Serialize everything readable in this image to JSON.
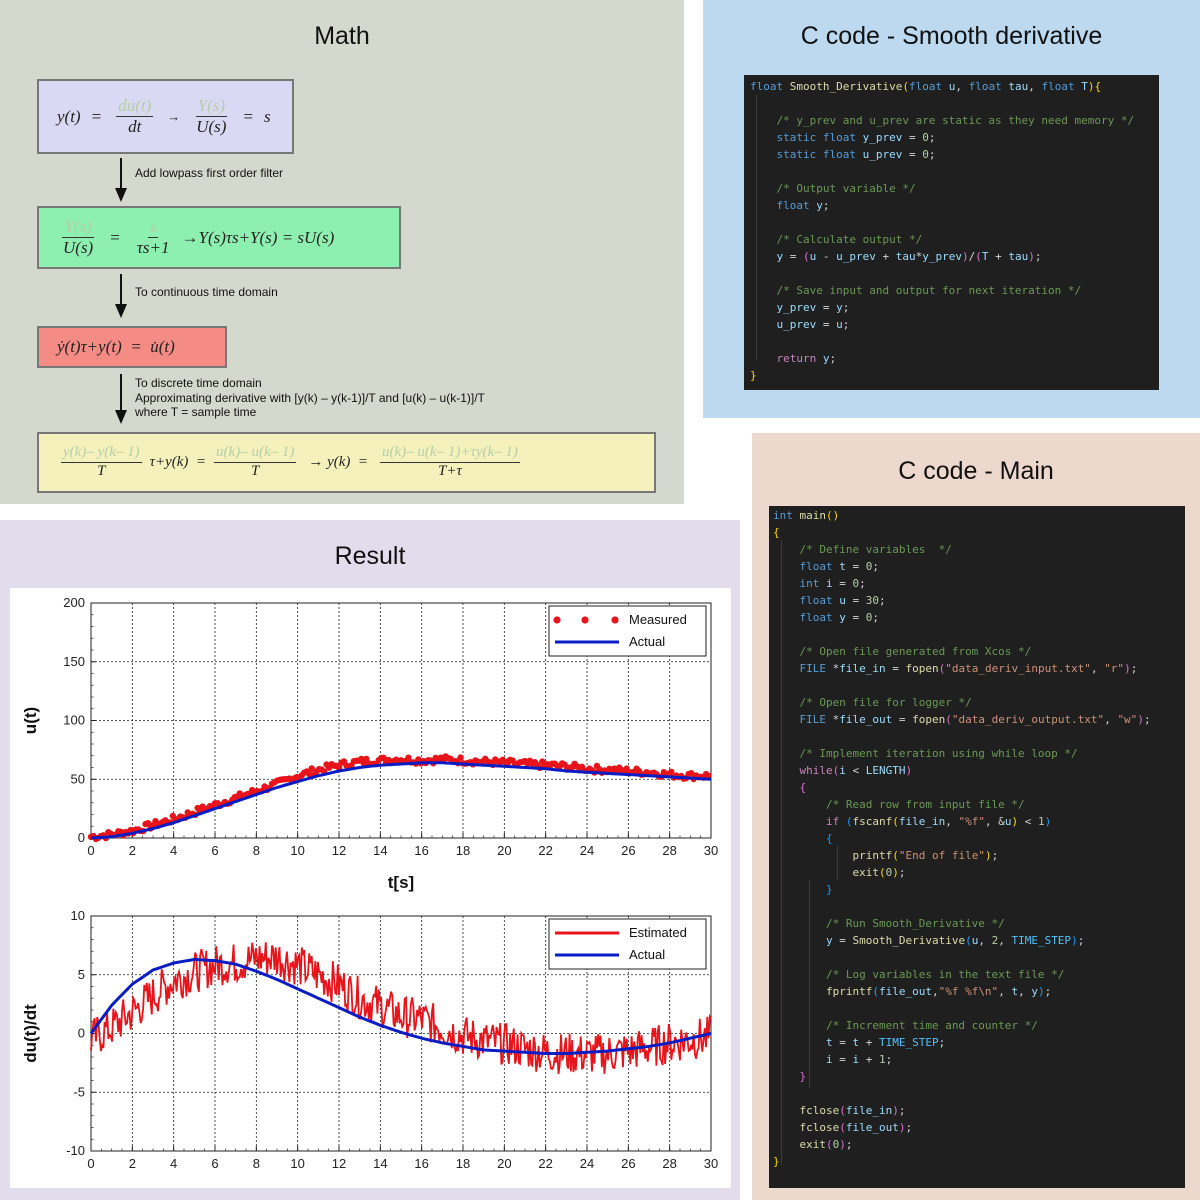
{
  "math": {
    "title": "Math",
    "box1": {
      "lhs": "y(t)",
      "eq": "=",
      "frac1_num": "du(t)",
      "frac1_den": "dt",
      "arrow": "→",
      "frac2_num": "Y(s)",
      "frac2_den": "U(s)",
      "rhs": "s"
    },
    "step1": "Add lowpass first order filter",
    "box2": {
      "frac1_num": "Y(s)",
      "frac1_den": "U(s)",
      "eq": "=",
      "frac2_num": "s",
      "frac2_den": "τs+1",
      "rest": "→Y(s)τs+Y(s)  =  sU(s)"
    },
    "step2": "To continuous time domain",
    "box3": {
      "text": "ẏ(t)τ+y(t)  =  u̇(t)"
    },
    "step3": [
      "To discrete time domain",
      "Approximating derivative with [y(k) – y(k-1)]/T and [u(k) – u(k-1)]/T",
      "where T = sample time"
    ],
    "box4": {
      "f1_num": "y(k)– y(k– 1)",
      "f1_den": "T",
      "mid": "τ+y(k)  =",
      "f2_num": "u(k)– u(k– 1)",
      "f2_den": "T",
      "arrow": "→ y(k)  =",
      "f3_num": "u(k)– u(k– 1)+τy(k– 1)",
      "f3_den": "T+τ"
    },
    "colors": {
      "box1": "#dad9f3",
      "box2": "#8ef0b0",
      "box3": "#f58b85",
      "box4": "#f4f1bd"
    }
  },
  "smooth": {
    "title": "C code - Smooth derivative"
  },
  "main": {
    "title": "C code - Main"
  },
  "result": {
    "title": "Result"
  },
  "chart_data": [
    {
      "type": "scatter",
      "xlabel": "t[s]",
      "ylabel": "u(t)",
      "xlim": [
        0,
        30
      ],
      "ylim": [
        0,
        200
      ],
      "xticks": [
        "0",
        "2",
        "4",
        "6",
        "8",
        "10",
        "12",
        "14",
        "16",
        "18",
        "20",
        "22",
        "24",
        "26",
        "28",
        "30"
      ],
      "yticks": [
        "0",
        "50",
        "100",
        "150",
        "200"
      ],
      "grid": true,
      "legend_position": "top-right",
      "series": [
        {
          "name": "Measured",
          "style": "markers",
          "color": "#e8141b",
          "x": [
            0,
            1,
            2,
            3,
            4,
            5,
            6,
            7,
            8,
            9,
            10,
            11,
            12,
            13,
            14,
            15,
            16,
            17,
            18,
            19,
            20,
            21,
            22,
            23,
            24,
            25,
            26,
            27,
            28,
            29,
            30
          ],
          "y": [
            1,
            3,
            6,
            11,
            16,
            22,
            28,
            34,
            40,
            46,
            53,
            58,
            62,
            65,
            66,
            67,
            66,
            67,
            66,
            65,
            64,
            63,
            62,
            61,
            59,
            58,
            57,
            56,
            54,
            53,
            53
          ]
        },
        {
          "name": "Actual",
          "style": "line",
          "color": "#0a1cc4",
          "x": [
            0,
            1,
            2,
            3,
            4,
            5,
            6,
            7,
            8,
            9,
            10,
            11,
            12,
            13,
            14,
            15,
            16,
            17,
            18,
            19,
            20,
            21,
            22,
            23,
            24,
            25,
            26,
            27,
            28,
            29,
            30
          ],
          "y": [
            0,
            1,
            4,
            8,
            13,
            19,
            25,
            31,
            37,
            43,
            48,
            53,
            57,
            60,
            62,
            63,
            64,
            64,
            63,
            62,
            61,
            60,
            59,
            57,
            56,
            55,
            54,
            53,
            52,
            51,
            50
          ]
        }
      ]
    },
    {
      "type": "line",
      "xlabel": "",
      "ylabel": "du(t)/dt",
      "xlim": [
        0,
        30
      ],
      "ylim": [
        -10,
        10
      ],
      "xticks": [
        "0",
        "2",
        "4",
        "6",
        "8",
        "10",
        "12",
        "14",
        "16",
        "18",
        "20",
        "22",
        "24",
        "26",
        "28",
        "30"
      ],
      "yticks": [
        "-10",
        "-5",
        "0",
        "5",
        "10"
      ],
      "grid": true,
      "legend_position": "top-right",
      "series": [
        {
          "name": "Estimated",
          "style": "line",
          "color": "#e8141b",
          "x": [
            0,
            1,
            2,
            3,
            4,
            5,
            6,
            7,
            8,
            9,
            10,
            11,
            12,
            13,
            14,
            15,
            16,
            17,
            18,
            19,
            20,
            21,
            22,
            23,
            24,
            25,
            26,
            27,
            28,
            29,
            30
          ],
          "y": [
            -0.5,
            0.5,
            1.8,
            3.2,
            4.5,
            5.2,
            5.8,
            6.0,
            6.4,
            6.5,
            5.8,
            5.0,
            4.2,
            3.0,
            2.3,
            1.5,
            1.2,
            0.5,
            -0.2,
            -0.6,
            -0.9,
            -1.3,
            -1.6,
            -1.7,
            -1.8,
            -1.7,
            -1.5,
            -1.2,
            -0.8,
            -0.5,
            -0.3
          ]
        },
        {
          "name": "Actual",
          "style": "line",
          "color": "#0a1cc4",
          "x": [
            0,
            1,
            2,
            3,
            4,
            5,
            6,
            7,
            8,
            9,
            10,
            11,
            12,
            13,
            14,
            15,
            16,
            17,
            18,
            19,
            20,
            21,
            22,
            23,
            24,
            25,
            26,
            27,
            28,
            29,
            30
          ],
          "y": [
            0,
            2.4,
            4.2,
            5.4,
            6.0,
            6.3,
            6.2,
            5.9,
            5.3,
            4.6,
            3.8,
            3.0,
            2.2,
            1.4,
            0.7,
            0.1,
            -0.4,
            -0.8,
            -1.1,
            -1.4,
            -1.5,
            -1.6,
            -1.7,
            -1.7,
            -1.6,
            -1.5,
            -1.3,
            -1.1,
            -0.8,
            -0.4,
            0.0
          ]
        }
      ]
    }
  ]
}
